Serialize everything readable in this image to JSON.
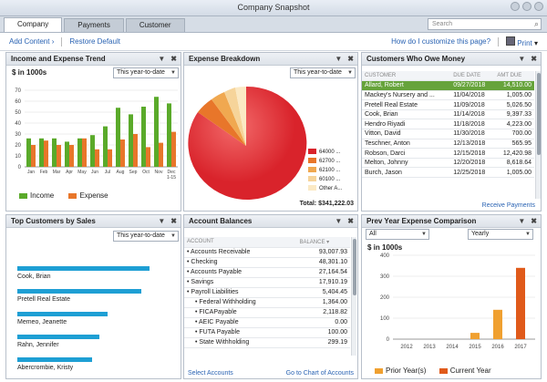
{
  "window": {
    "title": "Company Snapshot"
  },
  "tabs": [
    {
      "label": "Company",
      "active": true
    },
    {
      "label": "Payments",
      "active": false
    },
    {
      "label": "Customer",
      "active": false
    }
  ],
  "search": {
    "placeholder": "Search"
  },
  "actions": {
    "add_content": "Add Content",
    "restore_default": "Restore Default",
    "customize": "How do I customize this page?",
    "print": "Print"
  },
  "income_expense": {
    "title": "Income and Expense Trend",
    "period": "This year-to-date",
    "unit": "$ in 1000s",
    "legend": {
      "income": "Income",
      "expense": "Expense"
    },
    "colors": {
      "income": "#5aaa2a",
      "expense": "#e8762a"
    }
  },
  "expense_breakdown": {
    "title": "Expense Breakdown",
    "period": "This year-to-date",
    "legend": [
      {
        "label": "64000 ...",
        "color": "#d9232b"
      },
      {
        "label": "62700 ...",
        "color": "#e8762a"
      },
      {
        "label": "62100 ...",
        "color": "#f0a850"
      },
      {
        "label": "60100 ...",
        "color": "#f6d49a"
      },
      {
        "label": "Other A...",
        "color": "#fbe9c4"
      }
    ],
    "total": "Total: $341,222.03"
  },
  "customers_owe": {
    "title": "Customers Who Owe Money",
    "columns": [
      "CUSTOMER",
      "DUE DATE",
      "AMT DUE"
    ],
    "rows": [
      [
        "Allard, Robert",
        "09/27/2018",
        "14,510.00"
      ],
      [
        "Mackey's Nursery and ...",
        "11/04/2018",
        "1,005.00"
      ],
      [
        "Pretell Real Estate",
        "11/09/2018",
        "5,026.50"
      ],
      [
        "Cook, Brian",
        "11/14/2018",
        "9,397.33"
      ],
      [
        "Hendro Riyadi",
        "11/18/2018",
        "4,223.00"
      ],
      [
        "Vitton, David",
        "11/30/2018",
        "700.00"
      ],
      [
        "Teschner, Anton",
        "12/13/2018",
        "565.95"
      ],
      [
        "Robson, Darci",
        "12/15/2018",
        "12,420.98"
      ],
      [
        "Melton, Johnny",
        "12/20/2018",
        "8,618.64"
      ],
      [
        "Burch, Jason",
        "12/25/2018",
        "1,005.00"
      ]
    ],
    "footer": "Receive Payments"
  },
  "top_customers": {
    "title": "Top Customers by Sales",
    "period": "This year-to-date",
    "bars": [
      {
        "label": "Cook, Brian",
        "width": 145
      },
      {
        "label": "Pretell Real Estate",
        "width": 136
      },
      {
        "label": "Memeo, Jeanette",
        "width": 99
      },
      {
        "label": "Rahn, Jennifer",
        "width": 90
      },
      {
        "label": "Abercrombie, Kristy",
        "width": 82
      }
    ],
    "color": "#1e9fd4"
  },
  "account_balances": {
    "title": "Account Balances",
    "columns": [
      "ACCOUNT",
      "BALANCE"
    ],
    "rows": [
      {
        "name": "Accounts Receivable",
        "balance": "93,007.93",
        "indent": 0
      },
      {
        "name": "Checking",
        "balance": "48,301.10",
        "indent": 0
      },
      {
        "name": "Accounts Payable",
        "balance": "27,164.54",
        "indent": 0
      },
      {
        "name": "Savings",
        "balance": "17,910.19",
        "indent": 0
      },
      {
        "name": "Payroll Liabilities",
        "balance": "5,404.45",
        "indent": 0
      },
      {
        "name": "Federal Withholding",
        "balance": "1,364.00",
        "indent": 1
      },
      {
        "name": "FICAPayable",
        "balance": "2,118.82",
        "indent": 1
      },
      {
        "name": "AEIC Payable",
        "balance": "0.00",
        "indent": 1
      },
      {
        "name": "FUTA Payable",
        "balance": "100.00",
        "indent": 1
      },
      {
        "name": "State Withholding",
        "balance": "299.19",
        "indent": 1
      }
    ],
    "footer_left": "Select Accounts",
    "footer_right": "Go to Chart of Accounts"
  },
  "prev_year": {
    "title": "Prev Year Expense Comparison",
    "filter": "All",
    "period": "Yearly",
    "unit": "$ in 1000s",
    "legend": {
      "prior": "Prior Year(s)",
      "current": "Current Year"
    }
  },
  "chart_data": [
    {
      "type": "bar",
      "title": "Income and Expense Trend",
      "ylabel": "$ in 1000s",
      "ylim": [
        0,
        70
      ],
      "categories": [
        "Jan",
        "Feb",
        "Mar",
        "Apr",
        "May",
        "Jun",
        "Jul",
        "Aug",
        "Sep",
        "Oct",
        "Nov",
        "Dec 1-15"
      ],
      "yticks": [
        0,
        10,
        20,
        30,
        40,
        50,
        60,
        70
      ],
      "series": [
        {
          "name": "Income",
          "values": [
            26,
            26,
            26,
            23,
            26,
            29,
            37,
            54,
            48,
            55,
            64,
            58
          ]
        },
        {
          "name": "Expense",
          "values": [
            20,
            24,
            20,
            20,
            26,
            16,
            16,
            25,
            30,
            18,
            22,
            32
          ]
        }
      ]
    },
    {
      "type": "pie",
      "title": "Expense Breakdown",
      "categories": [
        "64000",
        "62700",
        "62100",
        "60100",
        "Other A..."
      ],
      "values": [
        78,
        8,
        6,
        5,
        3
      ],
      "total": "$341,222.03"
    },
    {
      "type": "bar",
      "title": "Top Customers by Sales",
      "categories": [
        "Cook, Brian",
        "Pretell Real Estate",
        "Memeo, Jeanette",
        "Rahn, Jennifer",
        "Abercrombie, Kristy"
      ],
      "values": [
        100,
        94,
        68,
        62,
        57
      ]
    },
    {
      "type": "bar",
      "title": "Prev Year Expense Comparison",
      "ylabel": "$ in 1000s",
      "ylim": [
        0,
        400
      ],
      "categories": [
        "2012",
        "2013",
        "2014",
        "2015",
        "2016",
        "2017"
      ],
      "yticks": [
        0,
        100,
        200,
        300,
        400
      ],
      "series": [
        {
          "name": "Prior Year(s)",
          "values": [
            0,
            0,
            0,
            30,
            140,
            0
          ]
        },
        {
          "name": "Current Year",
          "values": [
            0,
            0,
            0,
            0,
            0,
            340
          ]
        }
      ]
    }
  ]
}
